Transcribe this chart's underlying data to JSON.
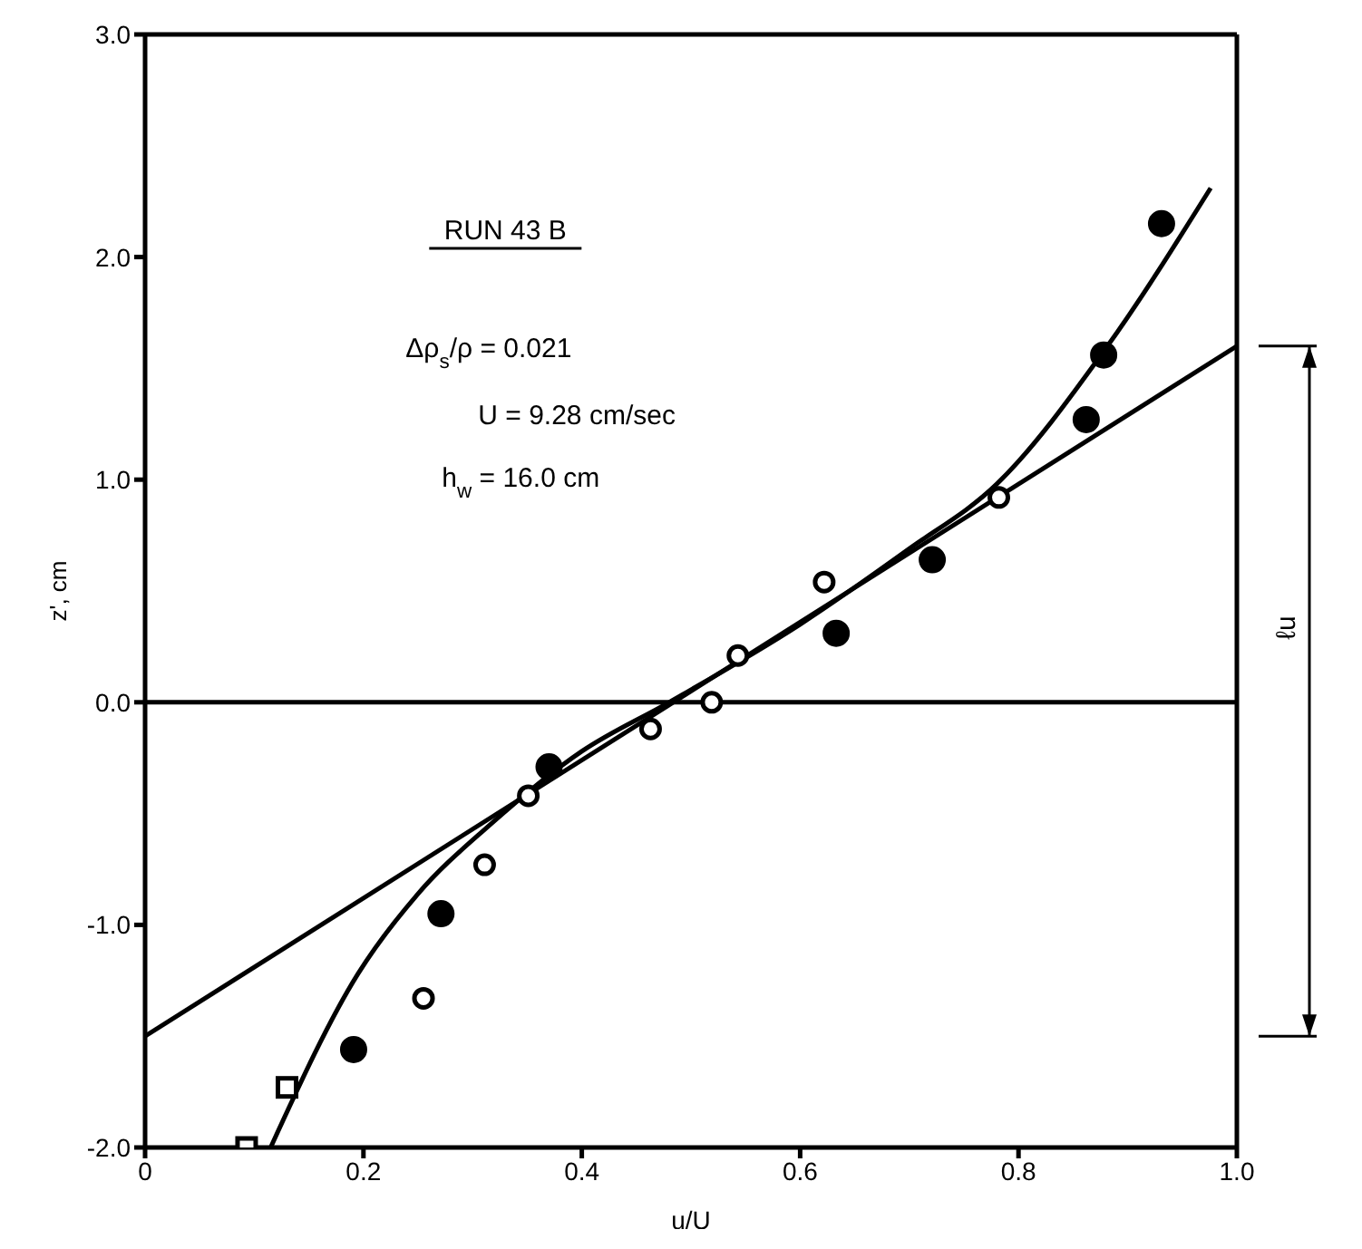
{
  "chart_data": {
    "type": "scatter",
    "xlabel": "u/U",
    "ylabel": "z', cm",
    "xlim": [
      0,
      1.0
    ],
    "ylim": [
      -2.0,
      3.0
    ],
    "xticks": [
      0,
      0.2,
      0.4,
      0.6,
      0.8,
      {
        "value": 1.0,
        "label": "1.0"
      }
    ],
    "yticks": [
      {
        "value": -2,
        "label": "-2.0"
      },
      {
        "value": -1,
        "label": "-1.0"
      },
      {
        "value": 0,
        "label": "0.0"
      },
      {
        "value": 1,
        "label": "1.0"
      },
      {
        "value": 2,
        "label": "2.0"
      },
      {
        "value": 3,
        "label": "3.0"
      }
    ],
    "grid": false,
    "legend": false,
    "series": [
      {
        "marker": "circle",
        "color": "#000000",
        "x": [
          0.191,
          0.271,
          0.37,
          0.633,
          0.721,
          0.862,
          0.878,
          0.931
        ],
        "values": [
          -1.56,
          -0.95,
          -0.29,
          0.31,
          0.64,
          1.27,
          1.56,
          2.15
        ]
      },
      {
        "marker": "circle",
        "color": "#ffffff",
        "x": [
          0.255,
          0.311,
          0.351,
          0.463,
          0.519,
          0.543,
          0.622,
          0.782
        ],
        "values": [
          -1.33,
          -0.73,
          -0.42,
          -0.12,
          0.0,
          0.21,
          0.54,
          0.92
        ]
      },
      {
        "marker": "square",
        "color": "#ffffff",
        "x": [
          0.093,
          0.13
        ],
        "values": [
          -2.0,
          -1.73
        ]
      },
      {
        "type": "line",
        "marker": "none",
        "color": "#000000",
        "x": [
          0,
          1.0
        ],
        "values": [
          -1.5,
          1.6
        ]
      },
      {
        "type": "line",
        "marker": "none",
        "color": "#000000",
        "x": [
          0.115,
          0.195,
          0.25,
          0.316,
          0.4,
          0.48,
          0.6,
          0.7,
          0.78,
          0.88,
          0.976
        ],
        "values": [
          -2.0,
          -1.22,
          -0.86,
          -0.55,
          -0.22,
          0.0,
          0.35,
          0.69,
          0.98,
          1.59,
          2.31
        ]
      }
    ],
    "ref_lines": [
      {
        "axis": "y",
        "value": 0,
        "color": "#000000"
      }
    ],
    "annotations": [
      "RUN 43 B",
      "Δρ$_{s}$/ρ = 0.021",
      "U = 9.28 cm/sec",
      "h$_{w}$ = 16.0 cm",
      "ℓu"
    ]
  }
}
